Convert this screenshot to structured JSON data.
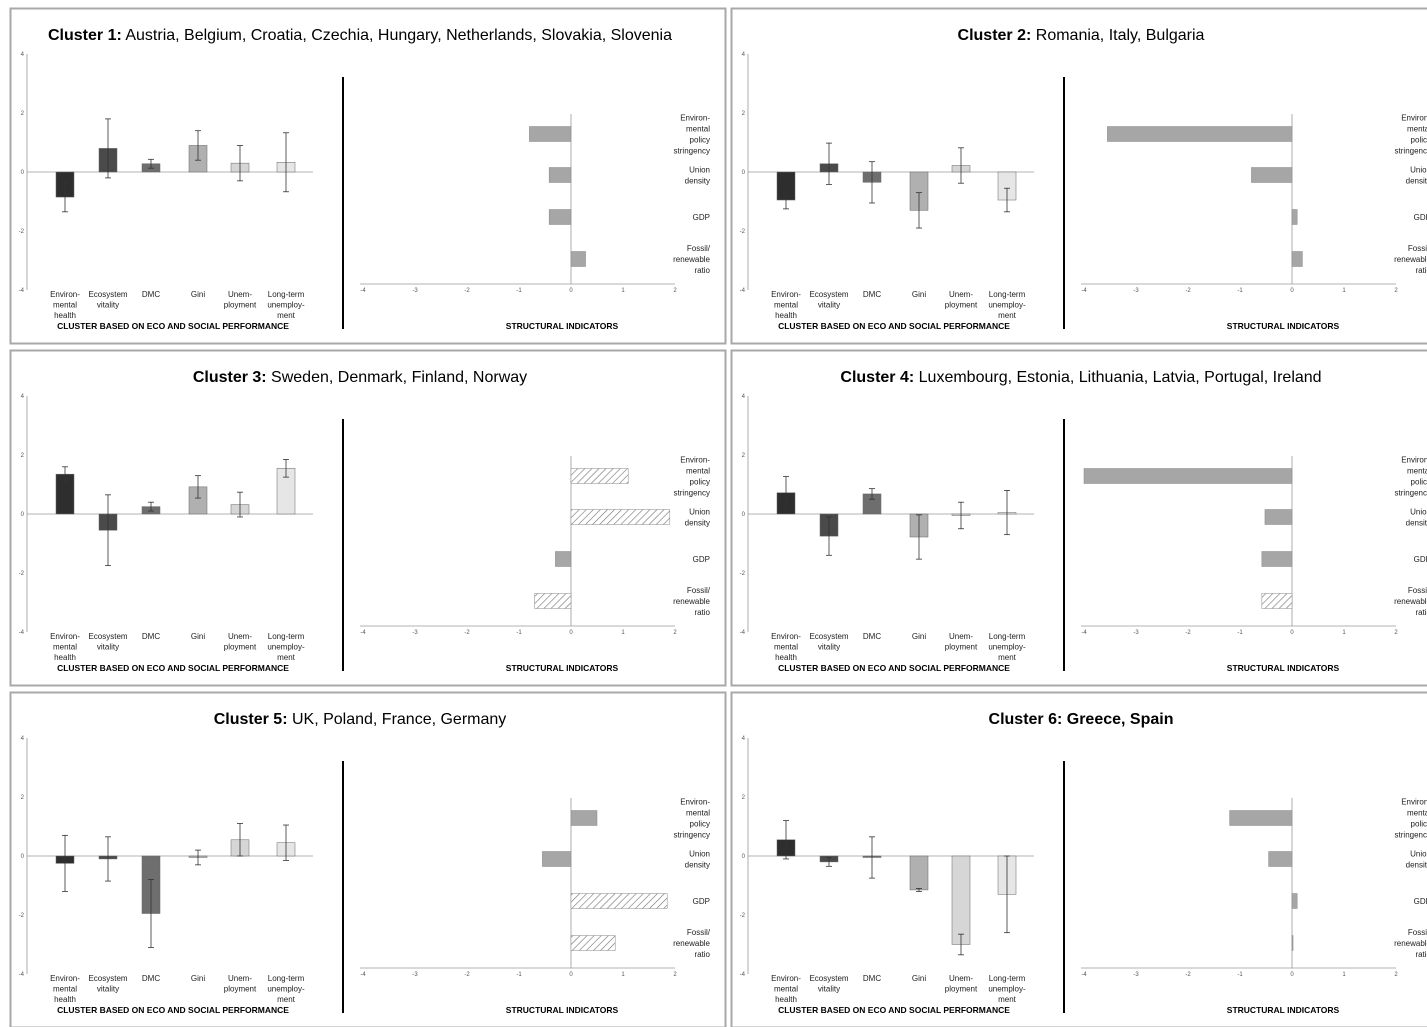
{
  "chart_data": [
    {
      "type": "bar",
      "title_bold": "Cluster 1:",
      "title_rest": " Austria, Belgium, Croatia, Czechia, Hungary, Netherlands, Slovakia, Slovenia",
      "left": {
        "categories": [
          "Environ-|mental|health",
          "Ecosystem|vitality",
          "DMC",
          "Gini",
          "Unem-|ployment",
          "Long-term|unemploy-|ment"
        ],
        "values": [
          -0.85,
          0.8,
          0.28,
          0.9,
          0.3,
          0.33
        ],
        "errors": [
          0.5,
          1.0,
          0.15,
          0.5,
          0.6,
          1.0
        ],
        "ylim": [
          -4,
          4
        ],
        "yticks": [
          "4",
          "2",
          "0",
          "-2",
          "-4"
        ],
        "xlabel": "CLUSTER BASED ON ECO AND SOCIAL PERFORMANCE"
      },
      "right": {
        "categories": [
          "Environ-|mental|policy|stringency",
          "Union|density",
          "GDP",
          "Fossil/|renewable|ratio"
        ],
        "values": [
          -0.8,
          -0.42,
          -0.42,
          0.28
        ],
        "hatched": [
          false,
          false,
          false,
          false
        ],
        "xlim": [
          -4,
          2
        ],
        "xticks": [
          "-4",
          "-3",
          "-2",
          "-1",
          "0",
          "1",
          "2"
        ],
        "xlabel": "STRUCTURAL INDICATORS"
      }
    },
    {
      "type": "bar",
      "title_bold": "Cluster 2:",
      "title_rest": " Romania, Italy, Bulgaria",
      "left": {
        "categories": [
          "Environ-|mental|health",
          "Ecosystem|vitality",
          "DMC",
          "Gini",
          "Unem-|ployment",
          "Long-term|unemploy-|ment"
        ],
        "values": [
          -0.95,
          0.28,
          -0.35,
          -1.3,
          0.22,
          -0.95
        ],
        "errors": [
          0.3,
          0.7,
          0.7,
          0.6,
          0.6,
          0.4
        ],
        "ylim": [
          -4,
          4
        ],
        "yticks": [
          "4",
          "2",
          "0",
          "-2",
          "-4"
        ],
        "xlabel": "CLUSTER BASED ON ECO AND SOCIAL PERFORMANCE"
      },
      "right": {
        "categories": [
          "Environ-|mental|policy|stringency",
          "Union|density",
          "GDP",
          "Fossil/|renewable|ratio"
        ],
        "values": [
          -3.55,
          -0.78,
          0.1,
          0.2
        ],
        "hatched": [
          false,
          false,
          false,
          false
        ],
        "xlim": [
          -4,
          2
        ],
        "xticks": [
          "-4",
          "-3",
          "-2",
          "-1",
          "0",
          "1",
          "2"
        ],
        "xlabel": "STRUCTURAL INDICATORS"
      }
    },
    {
      "type": "bar",
      "title_bold": "Cluster 3:",
      "title_rest": " Sweden, Denmark, Finland, Norway",
      "left": {
        "categories": [
          "Environ-|mental|health",
          "Ecosystem|vitality",
          "DMC",
          "Gini",
          "Unem-|ployment",
          "Long-term|unemploy-|ment"
        ],
        "values": [
          1.35,
          -0.55,
          0.25,
          0.92,
          0.32,
          1.55
        ],
        "errors": [
          0.25,
          1.2,
          0.15,
          0.38,
          0.42,
          0.3
        ],
        "ylim": [
          -4,
          4
        ],
        "yticks": [
          "4",
          "2",
          "0",
          "-2",
          "-4"
        ],
        "xlabel": "CLUSTER BASED ON ECO AND SOCIAL PERFORMANCE"
      },
      "right": {
        "categories": [
          "Environ-|mental|policy|stringency",
          "Union|density",
          "GDP",
          "Fossil/|renewable|ratio"
        ],
        "values": [
          1.1,
          1.9,
          -0.3,
          -0.7
        ],
        "hatched": [
          true,
          true,
          false,
          true
        ],
        "xlim": [
          -4,
          2
        ],
        "xticks": [
          "-4",
          "-3",
          "-2",
          "-1",
          "0",
          "1",
          "2"
        ],
        "xlabel": "STRUCTURAL INDICATORS"
      }
    },
    {
      "type": "bar",
      "title_bold": "Cluster 4:",
      "title_rest": " Luxembourg, Estonia, Lithuania, Latvia, Portugal, Ireland",
      "left": {
        "categories": [
          "Environ-|mental|health",
          "Ecosystem|vitality",
          "DMC",
          "Gini",
          "Unem-|ployment",
          "Long-term|unemploy-|ment"
        ],
        "values": [
          0.72,
          -0.75,
          0.68,
          -0.78,
          -0.05,
          0.05
        ],
        "errors": [
          0.55,
          0.65,
          0.18,
          0.75,
          0.45,
          0.75
        ],
        "ylim": [
          -4,
          4
        ],
        "yticks": [
          "4",
          "2",
          "0",
          "-2",
          "-4"
        ],
        "xlabel": "CLUSTER BASED ON ECO AND SOCIAL PERFORMANCE"
      },
      "right": {
        "categories": [
          "Environ-|mental|policy|stringency",
          "Union|density",
          "GDP",
          "Fossil/|renewable|ratio"
        ],
        "values": [
          -4.0,
          -0.52,
          -0.58,
          -0.58
        ],
        "hatched": [
          false,
          false,
          false,
          true
        ],
        "xlim": [
          -4,
          2
        ],
        "xticks": [
          "-4",
          "-3",
          "-2",
          "-1",
          "0",
          "1",
          "2"
        ],
        "xlabel": "STRUCTURAL INDICATORS"
      }
    },
    {
      "type": "bar",
      "title_bold": "Cluster 5:",
      "title_rest": " UK, Poland, France, Germany",
      "left": {
        "categories": [
          "Environ-|mental|health",
          "Ecosystem|vitality",
          "DMC",
          "Gini",
          "Unem-|ployment",
          "Long-term|unemploy-|ment"
        ],
        "values": [
          -0.25,
          -0.1,
          -1.95,
          -0.05,
          0.55,
          0.45
        ],
        "errors": [
          0.95,
          0.75,
          1.15,
          0.25,
          0.55,
          0.6
        ],
        "ylim": [
          -4,
          4
        ],
        "yticks": [
          "4",
          "2",
          "0",
          "-2",
          "-4"
        ],
        "xlabel": "CLUSTER BASED ON ECO AND SOCIAL PERFORMANCE"
      },
      "right": {
        "categories": [
          "Environ-|mental|policy|stringency",
          "Union|density",
          "GDP",
          "Fossil/|renewable|ratio"
        ],
        "values": [
          0.5,
          -0.55,
          1.85,
          0.85
        ],
        "hatched": [
          false,
          false,
          true,
          true
        ],
        "xlim": [
          -4,
          2
        ],
        "xticks": [
          "-4",
          "-3",
          "-2",
          "-1",
          "0",
          "1",
          "2"
        ],
        "xlabel": "STRUCTURAL INDICATORS"
      }
    },
    {
      "type": "bar",
      "title_bold": "Cluster 6: Greece, Spain",
      "title_rest": "",
      "left": {
        "categories": [
          "Environ-|mental|health",
          "Ecosystem|vitality",
          "DMC",
          "Gini",
          "Unem-|ployment",
          "Long-term|unemploy-|ment"
        ],
        "values": [
          0.55,
          -0.2,
          -0.05,
          -1.15,
          -3.0,
          -1.3
        ],
        "errors": [
          0.65,
          0.15,
          0.7,
          0.05,
          0.35,
          1.3
        ],
        "ylim": [
          -4,
          4
        ],
        "yticks": [
          "4",
          "2",
          "0",
          "-2",
          "-4"
        ],
        "xlabel": "CLUSTER BASED ON ECO AND SOCIAL PERFORMANCE"
      },
      "right": {
        "categories": [
          "Environ-|mental|policy|stringency",
          "Union|density",
          "GDP",
          "Fossil/|renewable|ratio"
        ],
        "values": [
          -1.2,
          -0.45,
          0.1,
          0.02
        ],
        "hatched": [
          false,
          false,
          false,
          false
        ],
        "xlim": [
          -4,
          2
        ],
        "xticks": [
          "-4",
          "-3",
          "-2",
          "-1",
          "0",
          "1",
          "2"
        ],
        "xlabel": "STRUCTURAL INDICATORS"
      }
    }
  ],
  "colors": {
    "bars_left": [
      "#2e2e2e",
      "#4a4a4a",
      "#6e6e6e",
      "#b0b0b0",
      "#d6d6d6",
      "#e6e6e6"
    ],
    "bars_right": "#a6a6a6",
    "panel_border": "#a8a8a8",
    "divider": "#000000",
    "axis": "#9a9a9a"
  }
}
